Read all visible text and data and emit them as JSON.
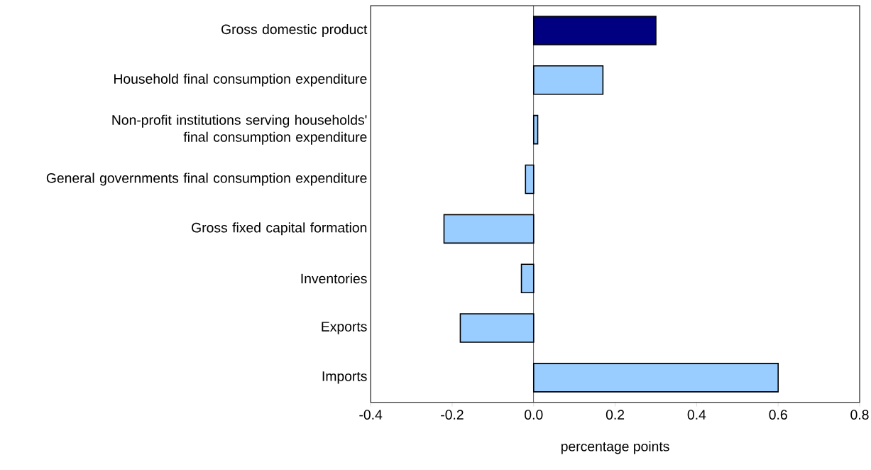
{
  "chart_data": {
    "type": "bar",
    "orientation": "horizontal",
    "xlabel": "percentage points",
    "categories": [
      "Gross domestic product",
      "Household final consumption expenditure",
      "Non-profit institutions serving households' final consumption expenditure",
      "General governments final consumption expenditure",
      "Gross fixed capital formation",
      "Inventories",
      "Exports",
      "Imports"
    ],
    "values": [
      0.3,
      0.17,
      0.01,
      -0.02,
      -0.22,
      -0.03,
      -0.18,
      0.6
    ],
    "colors": [
      "#000080",
      "#99ccff",
      "#99ccff",
      "#99ccff",
      "#99ccff",
      "#99ccff",
      "#99ccff",
      "#99ccff"
    ],
    "xlim": [
      -0.4,
      0.8
    ],
    "xticks": [
      {
        "value": -0.4,
        "label": "-0.4"
      },
      {
        "value": -0.2,
        "label": "-0.2"
      },
      {
        "value": 0,
        "label": "0.0"
      },
      {
        "value": 0.2,
        "label": "0.2"
      },
      {
        "value": 0.4,
        "label": "0.4"
      },
      {
        "value": 0.6,
        "label": "0.6"
      },
      {
        "value": 0.8,
        "label": "0.8"
      }
    ],
    "ref_lines": [
      {
        "axis": "x",
        "value": 0
      }
    ],
    "grid": false
  }
}
